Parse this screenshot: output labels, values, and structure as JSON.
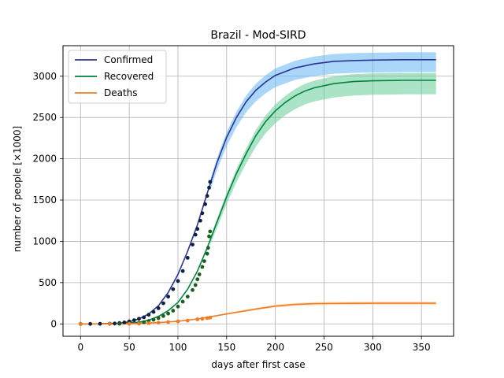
{
  "chart_data": {
    "type": "line",
    "title": "Brazil - Mod-SIRD",
    "xlabel": "days after first case",
    "ylabel": "number of people [×1000]",
    "xlim": [
      -18,
      383
    ],
    "ylim": [
      -150,
      3370
    ],
    "xticks": [
      0,
      50,
      100,
      150,
      200,
      250,
      300,
      350
    ],
    "yticks": [
      0,
      500,
      1000,
      1500,
      2000,
      2500,
      3000
    ],
    "grid": true,
    "legend_position": "top-left",
    "observed_until_day": 133,
    "model_until_day": 365,
    "series": [
      {
        "name": "Confirmed",
        "color": "#283593",
        "band_color": "#64b5f6",
        "dot_color": "#0d2240",
        "final_value": 3200,
        "band_final": [
          3050,
          3290
        ],
        "model_points": [
          [
            0,
            0
          ],
          [
            20,
            1
          ],
          [
            40,
            8
          ],
          [
            50,
            25
          ],
          [
            60,
            60
          ],
          [
            70,
            120
          ],
          [
            80,
            220
          ],
          [
            90,
            380
          ],
          [
            100,
            600
          ],
          [
            110,
            880
          ],
          [
            120,
            1200
          ],
          [
            130,
            1580
          ],
          [
            140,
            1950
          ],
          [
            150,
            2260
          ],
          [
            160,
            2500
          ],
          [
            170,
            2690
          ],
          [
            180,
            2830
          ],
          [
            190,
            2930
          ],
          [
            200,
            3010
          ],
          [
            220,
            3100
          ],
          [
            240,
            3150
          ],
          [
            260,
            3180
          ],
          [
            280,
            3190
          ],
          [
            300,
            3195
          ],
          [
            330,
            3200
          ],
          [
            365,
            3200
          ]
        ],
        "observed_points": [
          [
            0,
            0
          ],
          [
            10,
            0
          ],
          [
            20,
            1
          ],
          [
            30,
            3
          ],
          [
            35,
            5
          ],
          [
            40,
            10
          ],
          [
            45,
            18
          ],
          [
            50,
            30
          ],
          [
            55,
            45
          ],
          [
            60,
            62
          ],
          [
            65,
            80
          ],
          [
            70,
            110
          ],
          [
            75,
            145
          ],
          [
            80,
            190
          ],
          [
            85,
            250
          ],
          [
            90,
            330
          ],
          [
            95,
            420
          ],
          [
            100,
            520
          ],
          [
            105,
            640
          ],
          [
            110,
            800
          ],
          [
            115,
            960
          ],
          [
            118,
            1080
          ],
          [
            120,
            1150
          ],
          [
            123,
            1250
          ],
          [
            125,
            1340
          ],
          [
            128,
            1450
          ],
          [
            130,
            1550
          ],
          [
            132,
            1650
          ],
          [
            133,
            1720
          ]
        ]
      },
      {
        "name": "Recovered",
        "color": "#00843d",
        "band_color": "#66cc99",
        "dot_color": "#1b5e20",
        "final_value": 2950,
        "band_final": [
          2780,
          3040
        ],
        "model_points": [
          [
            0,
            0
          ],
          [
            40,
            2
          ],
          [
            60,
            20
          ],
          [
            70,
            45
          ],
          [
            80,
            90
          ],
          [
            90,
            160
          ],
          [
            100,
            260
          ],
          [
            110,
            420
          ],
          [
            120,
            640
          ],
          [
            130,
            920
          ],
          [
            140,
            1230
          ],
          [
            150,
            1540
          ],
          [
            160,
            1820
          ],
          [
            170,
            2060
          ],
          [
            180,
            2280
          ],
          [
            190,
            2450
          ],
          [
            200,
            2580
          ],
          [
            210,
            2680
          ],
          [
            220,
            2760
          ],
          [
            230,
            2820
          ],
          [
            240,
            2860
          ],
          [
            260,
            2910
          ],
          [
            280,
            2935
          ],
          [
            300,
            2945
          ],
          [
            330,
            2950
          ],
          [
            365,
            2950
          ]
        ],
        "observed_points": [
          [
            0,
            0
          ],
          [
            30,
            0
          ],
          [
            40,
            1
          ],
          [
            50,
            5
          ],
          [
            60,
            12
          ],
          [
            65,
            20
          ],
          [
            70,
            35
          ],
          [
            75,
            50
          ],
          [
            80,
            70
          ],
          [
            85,
            95
          ],
          [
            90,
            125
          ],
          [
            95,
            160
          ],
          [
            100,
            210
          ],
          [
            105,
            270
          ],
          [
            110,
            330
          ],
          [
            115,
            410
          ],
          [
            118,
            470
          ],
          [
            120,
            540
          ],
          [
            122,
            600
          ],
          [
            125,
            690
          ],
          [
            127,
            760
          ],
          [
            130,
            850
          ],
          [
            131,
            920
          ],
          [
            132,
            1060
          ],
          [
            133,
            1120
          ]
        ]
      },
      {
        "name": "Deaths",
        "color": "#ef7d22",
        "band_color": "#ffcc99",
        "dot_color": "#ef7d22",
        "final_value": 250,
        "band_final": [
          230,
          270
        ],
        "model_points": [
          [
            0,
            0
          ],
          [
            40,
            0
          ],
          [
            60,
            5
          ],
          [
            80,
            15
          ],
          [
            100,
            32
          ],
          [
            120,
            60
          ],
          [
            140,
            100
          ],
          [
            160,
            140
          ],
          [
            180,
            180
          ],
          [
            200,
            215
          ],
          [
            220,
            235
          ],
          [
            240,
            245
          ],
          [
            260,
            248
          ],
          [
            300,
            250
          ],
          [
            365,
            250
          ]
        ],
        "observed_points": [
          [
            0,
            0
          ],
          [
            30,
            0
          ],
          [
            50,
            1
          ],
          [
            60,
            3
          ],
          [
            70,
            8
          ],
          [
            80,
            15
          ],
          [
            90,
            22
          ],
          [
            100,
            30
          ],
          [
            110,
            40
          ],
          [
            120,
            55
          ],
          [
            125,
            62
          ],
          [
            130,
            70
          ],
          [
            133,
            75
          ]
        ]
      }
    ]
  }
}
